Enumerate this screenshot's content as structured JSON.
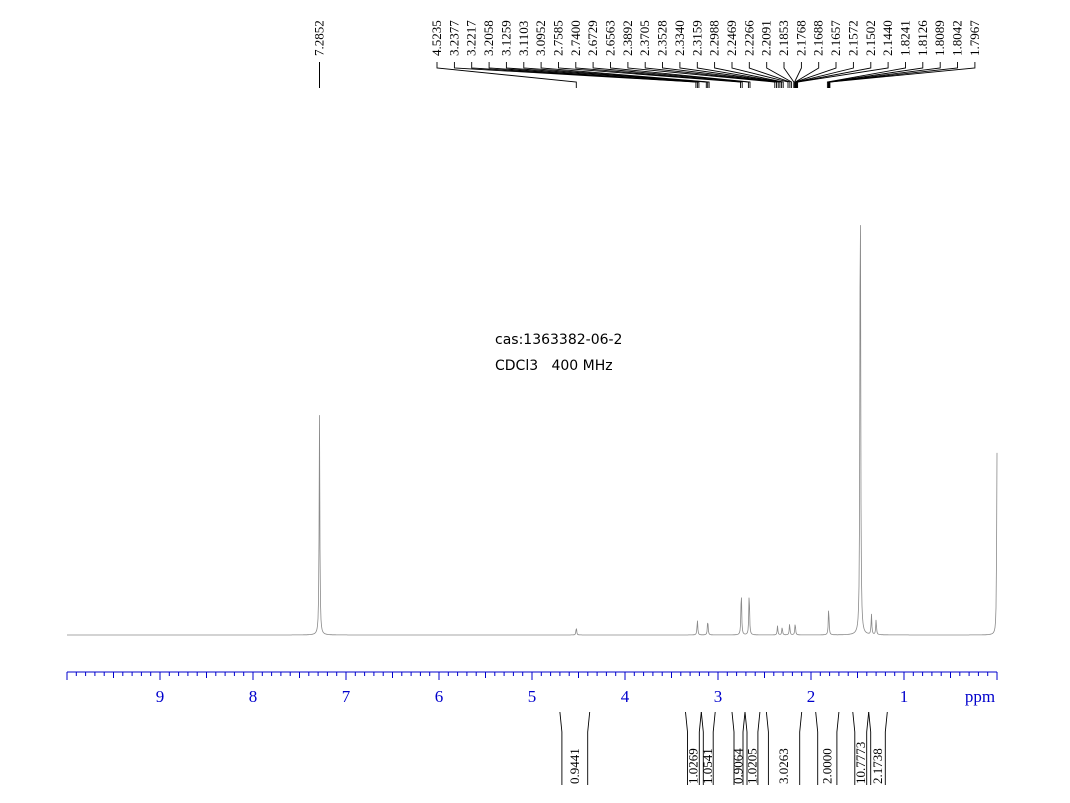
{
  "sample": {
    "cas": "cas:1363382-06-2",
    "conditions": "CDCl3   400 MHz"
  },
  "chart_data": {
    "type": "line",
    "title": "",
    "xlabel": "ppm",
    "ylabel": "",
    "xlim": [
      10.0,
      0.0
    ],
    "x_reversed": true,
    "ticks": [
      "9",
      "8",
      "7",
      "6",
      "5",
      "4",
      "3",
      "2",
      "1"
    ],
    "tick_values": [
      9,
      8,
      7,
      6,
      5,
      4,
      3,
      2,
      1
    ],
    "peak_labels": [
      {
        "label": "7.2852",
        "shift": 7.2852
      },
      {
        "label": "4.5235",
        "shift": 4.5235
      },
      {
        "label": "3.2377",
        "shift": 3.2377
      },
      {
        "label": "3.2217",
        "shift": 3.2217
      },
      {
        "label": "3.2058",
        "shift": 3.2058
      },
      {
        "label": "3.1259",
        "shift": 3.1259
      },
      {
        "label": "3.1103",
        "shift": 3.1103
      },
      {
        "label": "3.0952",
        "shift": 3.0952
      },
      {
        "label": "2.7585",
        "shift": 2.7585
      },
      {
        "label": "2.7400",
        "shift": 2.74
      },
      {
        "label": "2.6729",
        "shift": 2.6729
      },
      {
        "label": "2.6563",
        "shift": 2.6563
      },
      {
        "label": "2.3892",
        "shift": 2.3892
      },
      {
        "label": "2.3705",
        "shift": 2.3705
      },
      {
        "label": "2.3528",
        "shift": 2.3528
      },
      {
        "label": "2.3340",
        "shift": 2.334
      },
      {
        "label": "2.3159",
        "shift": 2.3159
      },
      {
        "label": "2.2988",
        "shift": 2.2988
      },
      {
        "label": "2.2469",
        "shift": 2.2469
      },
      {
        "label": "2.2266",
        "shift": 2.2266
      },
      {
        "label": "2.2091",
        "shift": 2.2091
      },
      {
        "label": "2.1853",
        "shift": 2.1853
      },
      {
        "label": "2.1768",
        "shift": 2.1768
      },
      {
        "label": "2.1688",
        "shift": 2.1688
      },
      {
        "label": "2.1657",
        "shift": 2.1657
      },
      {
        "label": "2.1572",
        "shift": 2.1572
      },
      {
        "label": "2.1502",
        "shift": 2.1502
      },
      {
        "label": "2.1440",
        "shift": 2.144
      },
      {
        "label": "1.8241",
        "shift": 1.8241
      },
      {
        "label": "1.8126",
        "shift": 1.8126
      },
      {
        "label": "1.8089",
        "shift": 1.8089
      },
      {
        "label": "1.8042",
        "shift": 1.8042
      },
      {
        "label": "1.7967",
        "shift": 1.7967
      }
    ],
    "integrals": [
      {
        "label": "0.9441",
        "from": 4.7,
        "to": 4.38
      },
      {
        "label": "1.0269",
        "from": 3.35,
        "to": 3.18
      },
      {
        "label": "1.0541",
        "from": 3.18,
        "to": 3.03
      },
      {
        "label": "0.9064",
        "from": 2.85,
        "to": 2.71
      },
      {
        "label": "1.0205",
        "from": 2.71,
        "to": 2.55
      },
      {
        "label": "3.0263",
        "from": 2.48,
        "to": 2.1
      },
      {
        "label": "2.0000",
        "from": 1.95,
        "to": 1.7
      },
      {
        "label": "10.7773",
        "from": 1.55,
        "to": 1.38
      },
      {
        "label": "2.1738",
        "from": 1.38,
        "to": 1.18
      }
    ],
    "peaks": [
      {
        "shift": 7.2852,
        "height": 0.43
      },
      {
        "shift": 4.5235,
        "height": 0.015
      },
      {
        "shift": 3.2217,
        "height": 0.03
      },
      {
        "shift": 3.1103,
        "height": 0.03
      },
      {
        "shift": 2.7495,
        "height": 0.09
      },
      {
        "shift": 2.6646,
        "height": 0.088
      },
      {
        "shift": 2.36,
        "height": 0.018
      },
      {
        "shift": 2.31,
        "height": 0.016
      },
      {
        "shift": 2.23,
        "height": 0.022
      },
      {
        "shift": 2.17,
        "height": 0.024
      },
      {
        "shift": 1.81,
        "height": 0.055
      },
      {
        "shift": 1.47,
        "height": 1.0
      },
      {
        "shift": 1.35,
        "height": 0.04
      },
      {
        "shift": 1.3,
        "height": 0.03
      },
      {
        "shift": 0.0,
        "height": 0.355
      }
    ]
  }
}
